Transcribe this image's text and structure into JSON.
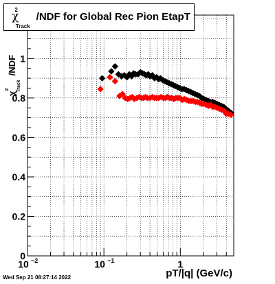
{
  "title": {
    "chi": "χ",
    "sup": "2",
    "sub": "Track",
    "rest": "/NDF for Global Rec Pion EtapT"
  },
  "ylabel": {
    "chi": "χ",
    "sup": "2",
    "sub": "Track",
    "rest": "/NDF"
  },
  "xlabel": "pT/|q| (GeV/c)",
  "datestamp": "Wed Sep 21 08:27:14 2022",
  "chart_data": {
    "type": "scatter",
    "xlog": true,
    "xlim": [
      0.01,
      5.0
    ],
    "ylim": [
      0,
      1.22
    ],
    "grid": true,
    "xticks": [
      {
        "value": 0.01,
        "label": "10",
        "exp": "−2"
      },
      {
        "value": 0.1,
        "label": "10",
        "exp": "−1"
      },
      {
        "value": 1,
        "label": "1",
        "exp": ""
      }
    ],
    "yticks": [
      {
        "value": 0,
        "label": "0"
      },
      {
        "value": 0.2,
        "label": "0.2"
      },
      {
        "value": 0.4,
        "label": "0.4"
      },
      {
        "value": 0.6,
        "label": "0.6"
      },
      {
        "value": 0.8,
        "label": "0.8"
      },
      {
        "value": 1.0,
        "label": "1"
      }
    ],
    "series": [
      {
        "color": "#000000",
        "x": [
          0.095,
          0.125,
          0.14,
          0.155,
          0.17,
          0.185,
          0.2,
          0.215,
          0.23,
          0.245,
          0.26,
          0.28,
          0.3,
          0.32,
          0.34,
          0.36,
          0.38,
          0.4,
          0.43,
          0.46,
          0.49,
          0.52,
          0.55,
          0.59,
          0.63,
          0.67,
          0.71,
          0.76,
          0.81,
          0.86,
          0.92,
          0.98,
          1.05,
          1.12,
          1.2,
          1.28,
          1.37,
          1.46,
          1.56,
          1.67,
          1.78,
          1.9,
          2.03,
          2.17,
          2.32,
          2.48,
          2.65,
          2.83,
          3.02,
          3.23,
          3.45,
          3.7,
          3.95,
          4.25,
          4.6
        ],
        "y": [
          0.9,
          0.935,
          0.96,
          0.92,
          0.91,
          0.915,
          0.905,
          0.92,
          0.91,
          0.925,
          0.92,
          0.92,
          0.93,
          0.925,
          0.92,
          0.915,
          0.92,
          0.91,
          0.915,
          0.9,
          0.905,
          0.895,
          0.9,
          0.89,
          0.885,
          0.88,
          0.875,
          0.87,
          0.865,
          0.86,
          0.855,
          0.85,
          0.845,
          0.845,
          0.84,
          0.835,
          0.83,
          0.825,
          0.82,
          0.815,
          0.81,
          0.8,
          0.795,
          0.79,
          0.785,
          0.78,
          0.78,
          0.775,
          0.77,
          0.765,
          0.76,
          0.755,
          0.745,
          0.735,
          0.725
        ]
      },
      {
        "color": "#ff0000",
        "x": [
          0.09,
          0.12,
          0.14,
          0.16,
          0.175,
          0.19,
          0.205,
          0.22,
          0.235,
          0.25,
          0.27,
          0.29,
          0.31,
          0.33,
          0.35,
          0.37,
          0.4,
          0.43,
          0.46,
          0.49,
          0.52,
          0.56,
          0.6,
          0.64,
          0.68,
          0.72,
          0.77,
          0.82,
          0.87,
          0.93,
          0.99,
          1.06,
          1.13,
          1.21,
          1.29,
          1.38,
          1.47,
          1.57,
          1.68,
          1.79,
          1.91,
          2.04,
          2.18,
          2.33,
          2.49,
          2.66,
          2.85,
          3.05,
          3.26,
          3.48,
          3.72,
          3.98,
          4.27,
          4.6
        ],
        "y": [
          0.845,
          0.905,
          0.885,
          0.81,
          0.82,
          0.8,
          0.795,
          0.8,
          0.805,
          0.795,
          0.8,
          0.805,
          0.8,
          0.8,
          0.805,
          0.8,
          0.8,
          0.805,
          0.8,
          0.8,
          0.8,
          0.805,
          0.8,
          0.8,
          0.805,
          0.8,
          0.8,
          0.795,
          0.8,
          0.8,
          0.8,
          0.79,
          0.795,
          0.79,
          0.785,
          0.785,
          0.785,
          0.78,
          0.78,
          0.775,
          0.77,
          0.77,
          0.765,
          0.76,
          0.765,
          0.755,
          0.755,
          0.75,
          0.745,
          0.74,
          0.735,
          0.72,
          0.72,
          0.715
        ]
      }
    ]
  }
}
